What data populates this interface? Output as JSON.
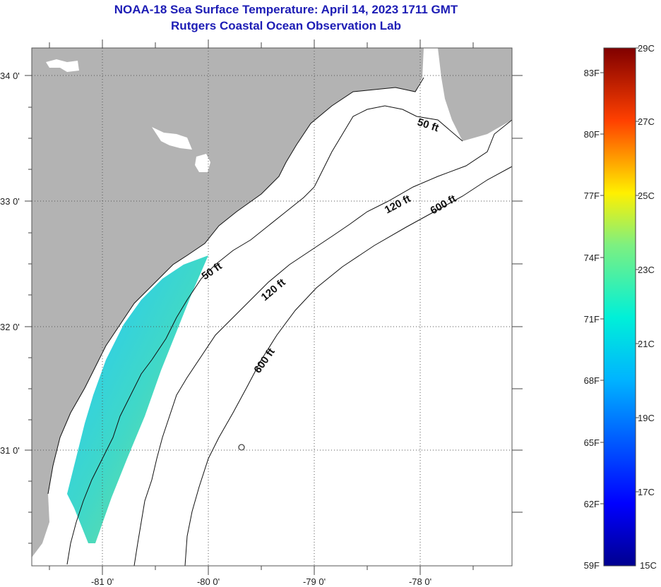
{
  "title": {
    "line1": "NOAA-18 Sea Surface Temperature:  April 14, 2023 1711 GMT",
    "line2": "Rutgers Coastal Ocean Observation Lab"
  },
  "map": {
    "lat_ticks": [
      "34 0'",
      "33 0'",
      "32 0'",
      "31 0'"
    ],
    "lon_ticks": [
      "-81 0'",
      "-80 0'",
      "-79 0'",
      "-78 0'"
    ],
    "contours": [
      "50 ft",
      "50 ft",
      "120 ft",
      "120 ft",
      "600 ft",
      "600 ft"
    ],
    "colors": {
      "land": "#b3b3b3",
      "ocean": "#ffffff",
      "grid": "#555555"
    }
  },
  "colorbar": {
    "fahrenheit": [
      "83F",
      "80F",
      "77F",
      "74F",
      "71F",
      "68F",
      "65F",
      "62F",
      "59F"
    ],
    "celsius": [
      "29C",
      "27C",
      "25C",
      "23C",
      "21C",
      "19C",
      "17C",
      "15C"
    ]
  }
}
